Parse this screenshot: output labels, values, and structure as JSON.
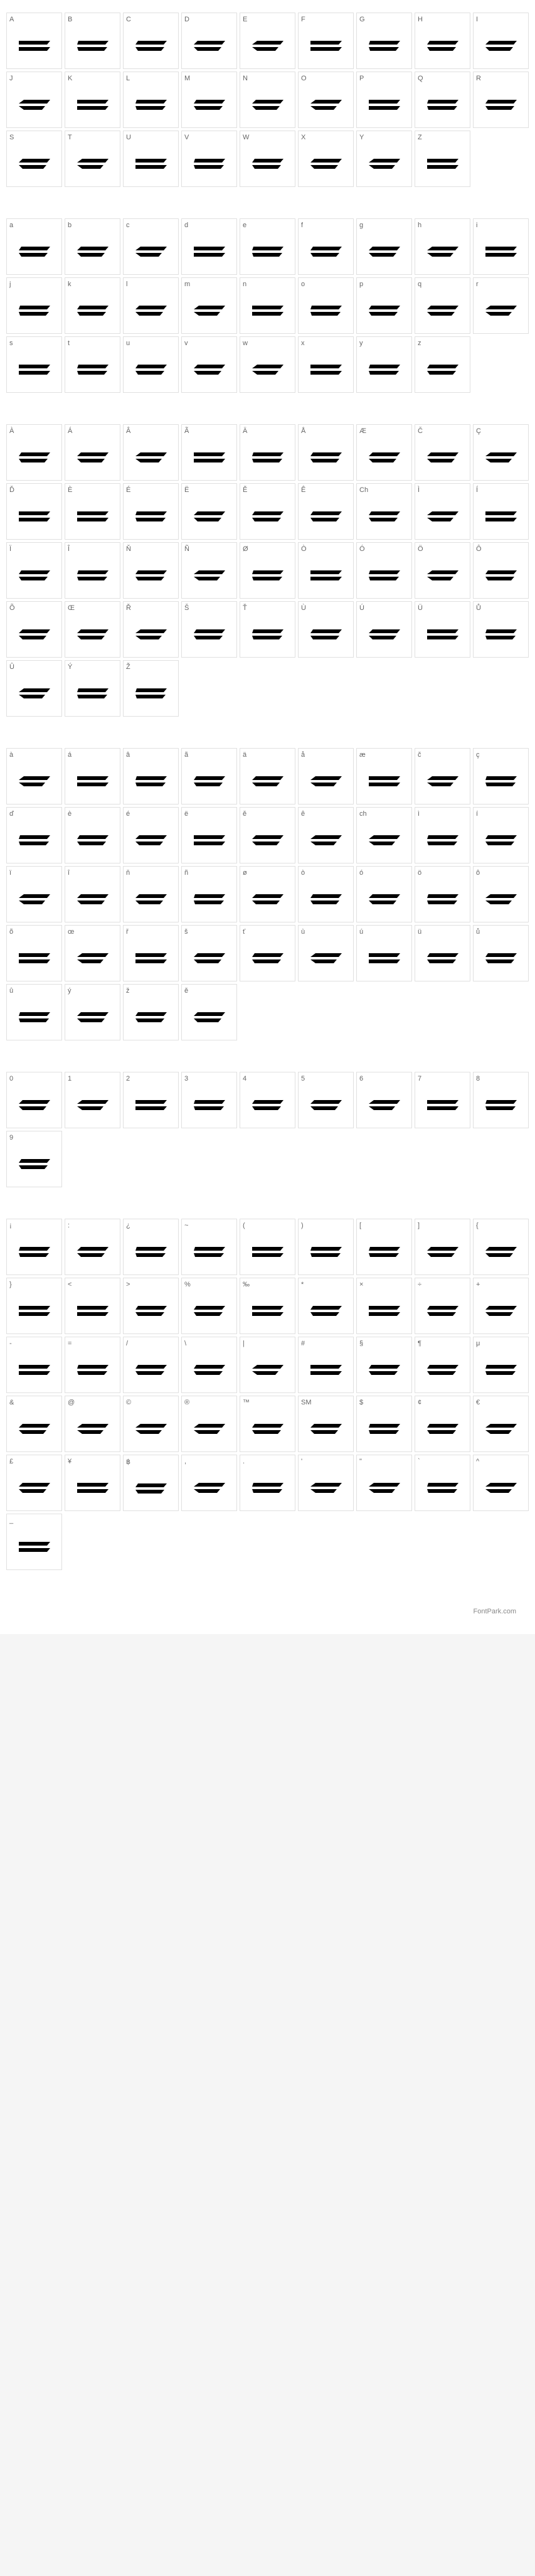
{
  "footer_text": "FontPark.com",
  "char_map": {
    "styling": {
      "cell_border_color": "#e0e0e0",
      "cell_background": "#ffffff",
      "label_color": "#666666",
      "label_fontsize": 11,
      "glyph_color": "#000000",
      "glyph_fontsize": 36,
      "grid_columns": 9,
      "grid_gap": 4
    },
    "sections": [
      {
        "name": "uppercase",
        "chars": [
          {
            "label": "A",
            "glyph": "⌐"
          },
          {
            "label": "B",
            "glyph": "⌐"
          },
          {
            "label": "C",
            "glyph": "⌐"
          },
          {
            "label": "D",
            "glyph": "⌐"
          },
          {
            "label": "E",
            "glyph": "⌐"
          },
          {
            "label": "F",
            "glyph": "⌐"
          },
          {
            "label": "G",
            "glyph": "⌐"
          },
          {
            "label": "H",
            "glyph": "⌐"
          },
          {
            "label": "I",
            "glyph": "⌐"
          },
          {
            "label": "J",
            "glyph": "⌐"
          },
          {
            "label": "K",
            "glyph": "⌐"
          },
          {
            "label": "L",
            "glyph": "⌐"
          },
          {
            "label": "M",
            "glyph": "⌐"
          },
          {
            "label": "N",
            "glyph": "⌐"
          },
          {
            "label": "O",
            "glyph": "⌐"
          },
          {
            "label": "P",
            "glyph": "⌐"
          },
          {
            "label": "Q",
            "glyph": "⌐"
          },
          {
            "label": "R",
            "glyph": "⌐"
          },
          {
            "label": "S",
            "glyph": "⌐"
          },
          {
            "label": "T",
            "glyph": "⌐"
          },
          {
            "label": "U",
            "glyph": "⌐"
          },
          {
            "label": "V",
            "glyph": "⌐"
          },
          {
            "label": "W",
            "glyph": "⌐"
          },
          {
            "label": "X",
            "glyph": "⌐"
          },
          {
            "label": "Y",
            "glyph": "⌐"
          },
          {
            "label": "Z",
            "glyph": "⌐"
          }
        ]
      },
      {
        "name": "lowercase",
        "chars": [
          {
            "label": "a",
            "glyph": "⌐"
          },
          {
            "label": "b",
            "glyph": "⌐"
          },
          {
            "label": "c",
            "glyph": "⌐"
          },
          {
            "label": "d",
            "glyph": "⌐"
          },
          {
            "label": "e",
            "glyph": "⌐"
          },
          {
            "label": "f",
            "glyph": "⌐"
          },
          {
            "label": "g",
            "glyph": "⌐"
          },
          {
            "label": "h",
            "glyph": "⌐"
          },
          {
            "label": "i",
            "glyph": "⌐"
          },
          {
            "label": "j",
            "glyph": "⌐"
          },
          {
            "label": "k",
            "glyph": "⌐"
          },
          {
            "label": "l",
            "glyph": "⌐"
          },
          {
            "label": "m",
            "glyph": "⌐"
          },
          {
            "label": "n",
            "glyph": "⌐"
          },
          {
            "label": "o",
            "glyph": "⌐"
          },
          {
            "label": "p",
            "glyph": "⌐"
          },
          {
            "label": "q",
            "glyph": "⌐"
          },
          {
            "label": "r",
            "glyph": "⌐"
          },
          {
            "label": "s",
            "glyph": "⌐"
          },
          {
            "label": "t",
            "glyph": "⌐"
          },
          {
            "label": "u",
            "glyph": "⌐"
          },
          {
            "label": "v",
            "glyph": "⌐"
          },
          {
            "label": "w",
            "glyph": "⌐"
          },
          {
            "label": "x",
            "glyph": "⌐"
          },
          {
            "label": "y",
            "glyph": "⌐"
          },
          {
            "label": "z",
            "glyph": "⌐"
          }
        ]
      },
      {
        "name": "accented-upper",
        "chars": [
          {
            "label": "À",
            "glyph": "⌐"
          },
          {
            "label": "Á",
            "glyph": "⌐"
          },
          {
            "label": "Â",
            "glyph": "⌐"
          },
          {
            "label": "Ã",
            "glyph": "⌐"
          },
          {
            "label": "Ä",
            "glyph": "⌐"
          },
          {
            "label": "Å",
            "glyph": "⌐"
          },
          {
            "label": "Æ",
            "glyph": "⌐"
          },
          {
            "label": "Č",
            "glyph": "⌐"
          },
          {
            "label": "Ç",
            "glyph": "⌐"
          },
          {
            "label": "Ď",
            "glyph": "⌐"
          },
          {
            "label": "È",
            "glyph": "⌐"
          },
          {
            "label": "É",
            "glyph": "⌐"
          },
          {
            "label": "Ë",
            "glyph": "⌐"
          },
          {
            "label": "Ě",
            "glyph": "⌐"
          },
          {
            "label": "Ê",
            "glyph": "⌐"
          },
          {
            "label": "Ch",
            "glyph": "⌐"
          },
          {
            "label": "Ì",
            "glyph": "⌐"
          },
          {
            "label": "Í",
            "glyph": "⌐"
          },
          {
            "label": "Ï",
            "glyph": "⌐"
          },
          {
            "label": "Î",
            "glyph": "⌐"
          },
          {
            "label": "Ň",
            "glyph": "⌐"
          },
          {
            "label": "Ñ",
            "glyph": "⌐"
          },
          {
            "label": "Ø",
            "glyph": "⌐"
          },
          {
            "label": "Ò",
            "glyph": "⌐"
          },
          {
            "label": "Ó",
            "glyph": "⌐"
          },
          {
            "label": "Ö",
            "glyph": "⌐"
          },
          {
            "label": "Ô",
            "glyph": "⌐"
          },
          {
            "label": "Õ",
            "glyph": "⌐"
          },
          {
            "label": "Œ",
            "glyph": "⌐"
          },
          {
            "label": "Ř",
            "glyph": "⌐"
          },
          {
            "label": "Š",
            "glyph": "⌐"
          },
          {
            "label": "Ť",
            "glyph": "⌐"
          },
          {
            "label": "Ù",
            "glyph": "⌐"
          },
          {
            "label": "Ú",
            "glyph": "⌐"
          },
          {
            "label": "Ü",
            "glyph": "⌐"
          },
          {
            "label": "Ů",
            "glyph": "⌐"
          },
          {
            "label": "Û",
            "glyph": "⌐"
          },
          {
            "label": "Ý",
            "glyph": "⌐"
          },
          {
            "label": "Ž",
            "glyph": "⌐"
          }
        ]
      },
      {
        "name": "accented-lower",
        "chars": [
          {
            "label": "à",
            "glyph": "⌐"
          },
          {
            "label": "á",
            "glyph": "⌐"
          },
          {
            "label": "â",
            "glyph": "⌐"
          },
          {
            "label": "ã",
            "glyph": "⌐"
          },
          {
            "label": "ä",
            "glyph": "⌐"
          },
          {
            "label": "å",
            "glyph": "⌐"
          },
          {
            "label": "æ",
            "glyph": "⌐"
          },
          {
            "label": "č",
            "glyph": "⌐"
          },
          {
            "label": "ç",
            "glyph": "⌐"
          },
          {
            "label": "ď",
            "glyph": "⌐"
          },
          {
            "label": "è",
            "glyph": "⌐"
          },
          {
            "label": "é",
            "glyph": "⌐"
          },
          {
            "label": "ë",
            "glyph": "⌐"
          },
          {
            "label": "ě",
            "glyph": "⌐"
          },
          {
            "label": "ê",
            "glyph": "⌐"
          },
          {
            "label": "ch",
            "glyph": "⌐"
          },
          {
            "label": "ì",
            "glyph": "⌐"
          },
          {
            "label": "í",
            "glyph": "⌐"
          },
          {
            "label": "ï",
            "glyph": "⌐"
          },
          {
            "label": "î",
            "glyph": "⌐"
          },
          {
            "label": "ň",
            "glyph": "⌐"
          },
          {
            "label": "ñ",
            "glyph": "⌐"
          },
          {
            "label": "ø",
            "glyph": "⌐"
          },
          {
            "label": "ò",
            "glyph": "⌐"
          },
          {
            "label": "ó",
            "glyph": "⌐"
          },
          {
            "label": "ö",
            "glyph": "⌐"
          },
          {
            "label": "ô",
            "glyph": "⌐"
          },
          {
            "label": "õ",
            "glyph": "⌐"
          },
          {
            "label": "œ",
            "glyph": "⌐"
          },
          {
            "label": "ř",
            "glyph": "⌐"
          },
          {
            "label": "š",
            "glyph": "⌐"
          },
          {
            "label": "ť",
            "glyph": "⌐"
          },
          {
            "label": "ù",
            "glyph": "⌐"
          },
          {
            "label": "ú",
            "glyph": "⌐"
          },
          {
            "label": "ü",
            "glyph": "⌐"
          },
          {
            "label": "ů",
            "glyph": "⌐"
          },
          {
            "label": "û",
            "glyph": "⌐"
          },
          {
            "label": "ý",
            "glyph": "⌐"
          },
          {
            "label": "ž",
            "glyph": "⌐"
          },
          {
            "label": "ě",
            "glyph": "⌐"
          }
        ]
      },
      {
        "name": "digits",
        "chars": [
          {
            "label": "0",
            "glyph": "⌐"
          },
          {
            "label": "1",
            "glyph": "⌐"
          },
          {
            "label": "2",
            "glyph": "⌐"
          },
          {
            "label": "3",
            "glyph": "⌐"
          },
          {
            "label": "4",
            "glyph": "⌐"
          },
          {
            "label": "5",
            "glyph": "⌐"
          },
          {
            "label": "6",
            "glyph": "⌐"
          },
          {
            "label": "7",
            "glyph": "⌐"
          },
          {
            "label": "8",
            "glyph": "⌐"
          },
          {
            "label": "9",
            "glyph": "⌐"
          }
        ]
      },
      {
        "name": "symbols",
        "chars": [
          {
            "label": "¡",
            "glyph": "⌐"
          },
          {
            "label": ":",
            "glyph": "⌐"
          },
          {
            "label": "¿",
            "glyph": "⌐"
          },
          {
            "label": "~",
            "glyph": "⌐"
          },
          {
            "label": "(",
            "glyph": "⌐"
          },
          {
            "label": ")",
            "glyph": "⌐"
          },
          {
            "label": "[",
            "glyph": "⌐"
          },
          {
            "label": "]",
            "glyph": "⌐"
          },
          {
            "label": "{",
            "glyph": "⌐"
          },
          {
            "label": "}",
            "glyph": "⌐"
          },
          {
            "label": "<",
            "glyph": "⌐"
          },
          {
            "label": ">",
            "glyph": "⌐"
          },
          {
            "label": "%",
            "glyph": "⌐"
          },
          {
            "label": "‰",
            "glyph": "⌐"
          },
          {
            "label": "*",
            "glyph": "⌐"
          },
          {
            "label": "×",
            "glyph": "⌐"
          },
          {
            "label": "÷",
            "glyph": "⌐"
          },
          {
            "label": "+",
            "glyph": "⌐"
          },
          {
            "label": "-",
            "glyph": "⌐"
          },
          {
            "label": "=",
            "glyph": "⌐"
          },
          {
            "label": "/",
            "glyph": "⌐"
          },
          {
            "label": "\\",
            "glyph": "⌐"
          },
          {
            "label": "|",
            "glyph": "⌐"
          },
          {
            "label": "#",
            "glyph": "⌐"
          },
          {
            "label": "§",
            "glyph": "⌐"
          },
          {
            "label": "¶",
            "glyph": "⌐"
          },
          {
            "label": "μ",
            "glyph": "μ"
          },
          {
            "label": "&",
            "glyph": "⌐"
          },
          {
            "label": "@",
            "glyph": "⌐"
          },
          {
            "label": "©",
            "glyph": "⌐"
          },
          {
            "label": "®",
            "glyph": "⌐"
          },
          {
            "label": "™",
            "glyph": "⌐"
          },
          {
            "label": "SM",
            "glyph": "SM"
          },
          {
            "label": "$",
            "glyph": "⌐"
          },
          {
            "label": "¢",
            "glyph": "⌐"
          },
          {
            "label": "€",
            "glyph": "⌐"
          },
          {
            "label": "£",
            "glyph": "⌐"
          },
          {
            "label": "¥",
            "glyph": "⌐"
          },
          {
            "label": "฿",
            "glyph": "฿"
          },
          {
            "label": ",",
            "glyph": "⌐"
          },
          {
            "label": ".",
            "glyph": "⌐"
          },
          {
            "label": "'",
            "glyph": "⌐"
          },
          {
            "label": "\"",
            "glyph": "⌐"
          },
          {
            "label": "`",
            "glyph": "⌐"
          },
          {
            "label": "^",
            "glyph": "⌐"
          },
          {
            "label": "_",
            "glyph": "⌐"
          }
        ]
      }
    ]
  }
}
